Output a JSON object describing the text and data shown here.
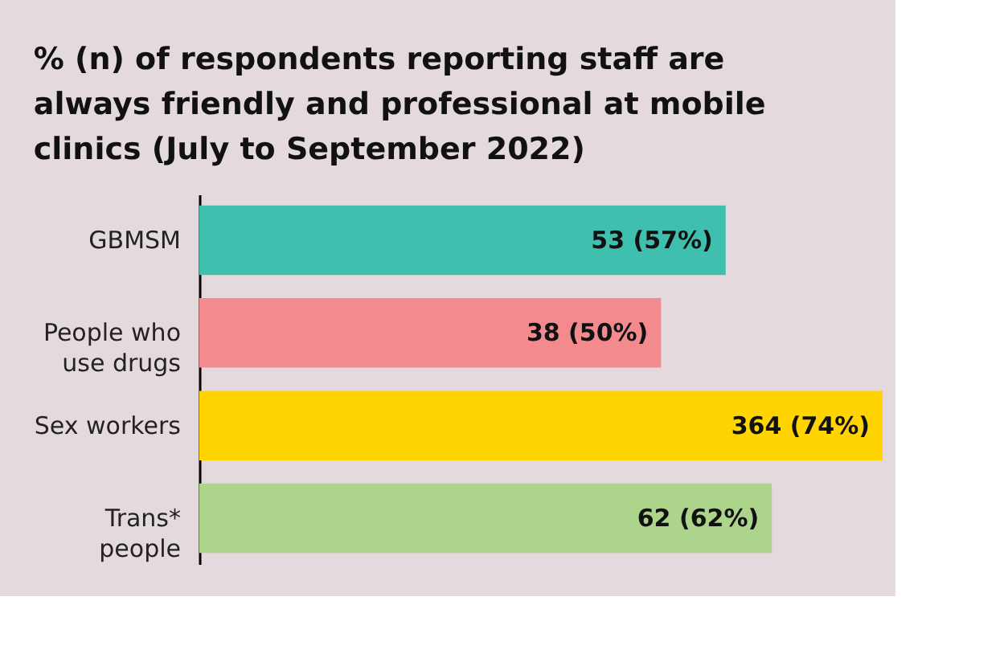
{
  "chart_data": {
    "type": "bar",
    "orientation": "horizontal",
    "title": "% (n) of respondents reporting staff are always friendly and professional at mobile clinics (July to September 2022)",
    "categories": [
      "GBMSM",
      "People who use drugs",
      "Sex workers",
      "Trans* people"
    ],
    "values": [
      57,
      50,
      74,
      62
    ],
    "colors": [
      "#3fbfad",
      "#f38b8e",
      "#ffd400",
      "#acd48a"
    ],
    "value_labels": [
      "53 (57%)",
      "38 (50%)",
      "364 (74%)",
      "62 (62%)"
    ],
    "tick_labels": "y"
  }
}
